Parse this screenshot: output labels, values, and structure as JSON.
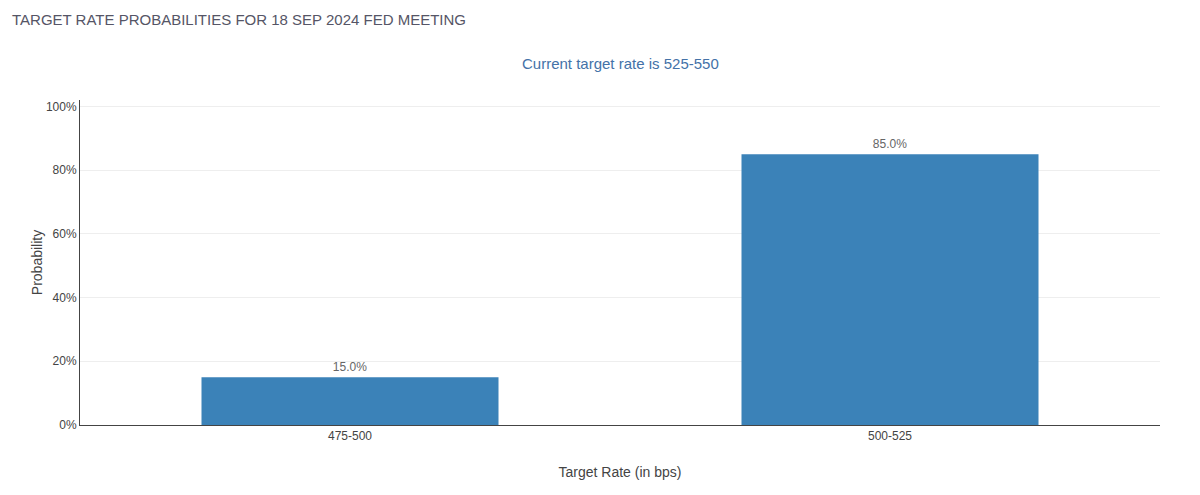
{
  "chart_data": {
    "type": "bar",
    "title": "TARGET RATE PROBABILITIES FOR 18 SEP 2024 FED MEETING",
    "subtitle": "Current target rate is 525-550",
    "categories": [
      "475-500",
      "500-525"
    ],
    "values": [
      15.0,
      85.0
    ],
    "value_labels": [
      "15.0%",
      "85.0%"
    ],
    "data_labels": true,
    "color": "#3b82b8",
    "xlabel": "Target Rate (in bps)",
    "ylabel": "Probability",
    "ylim": [
      0,
      102
    ],
    "yticks": [
      {
        "value": 0,
        "label": "0%"
      },
      {
        "value": 20,
        "label": "20%"
      },
      {
        "value": 40,
        "label": "40%"
      },
      {
        "value": 60,
        "label": "60%"
      },
      {
        "value": 80,
        "label": "80%"
      },
      {
        "value": 100,
        "label": "100%"
      }
    ],
    "grid": true
  }
}
